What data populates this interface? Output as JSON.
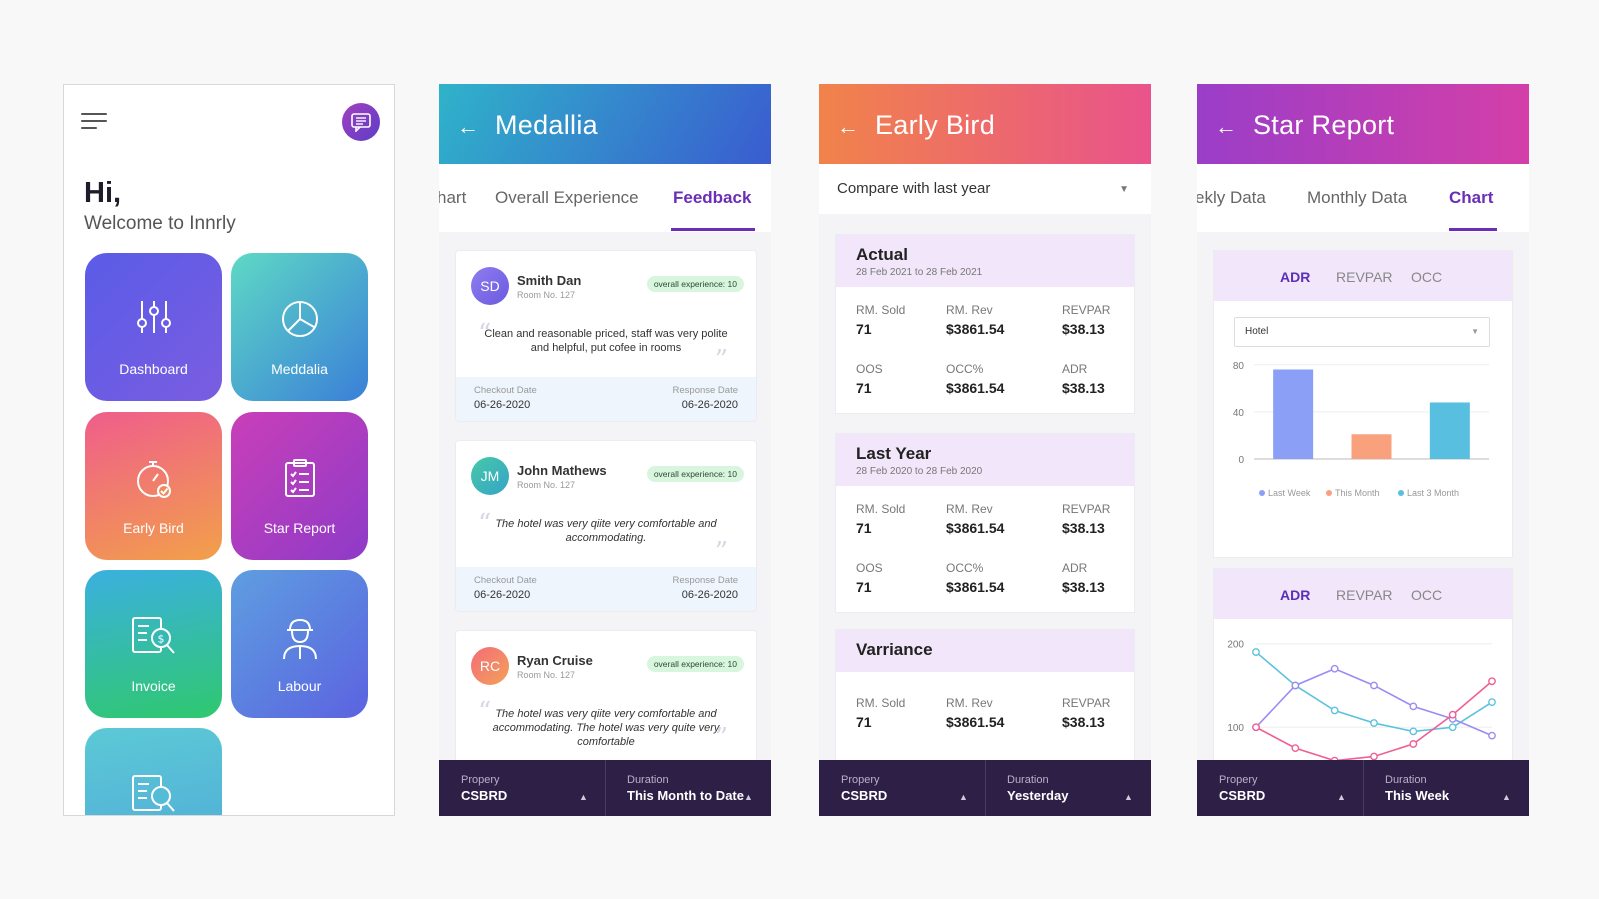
{
  "home": {
    "greeting": "Hi,",
    "welcome": "Welcome to Innrly",
    "tiles": [
      {
        "label": "Dashboard",
        "icon": "sliders-icon"
      },
      {
        "label": "Meddalia",
        "icon": "pie-chart-icon"
      },
      {
        "label": "Early Bird",
        "icon": "stopwatch-icon"
      },
      {
        "label": "Star Report",
        "icon": "clipboard-checklist-icon"
      },
      {
        "label": "Invoice",
        "icon": "invoice-search-icon"
      },
      {
        "label": "Labour",
        "icon": "worker-icon"
      },
      {
        "label": "",
        "icon": "invoice-search-icon"
      }
    ]
  },
  "medallia": {
    "title": "Medallia",
    "tabs": [
      "hart",
      "Overall Experience",
      "Feedback"
    ],
    "active_tab": "Feedback",
    "cards": [
      {
        "initials": "SD",
        "name": "Smith Dan",
        "room": "Room No. 127",
        "badge": "overall experience: 10",
        "quote": "Clean and reasonable priced, staff was very polite and helpful, put cofee in rooms",
        "checkout_label": "Checkout Date",
        "checkout": "06-26-2020",
        "response_label": "Response Date",
        "response": "06-26-2020"
      },
      {
        "initials": "JM",
        "name": "John Mathews",
        "room": "Room No. 127",
        "badge": "overall experience: 10",
        "quote": "The hotel was very qiite very comfortable and accommodating.",
        "checkout_label": "Checkout Date",
        "checkout": "06-26-2020",
        "response_label": "Response Date",
        "response": "06-26-2020"
      },
      {
        "initials": "RC",
        "name": "Ryan Cruise",
        "room": "Room No. 127",
        "badge": "overall experience: 10",
        "quote": "The hotel was very qiite very comfortable and accommodating. The hotel was very quite very comfortable"
      }
    ],
    "bottom": {
      "property_label": "Propery",
      "property": "CSBRD",
      "duration_label": "Duration",
      "duration": "This Month to Date"
    }
  },
  "early_bird": {
    "title": "Early Bird",
    "compare": "Compare with last year",
    "sections": [
      {
        "title": "Actual",
        "sub": "28 Feb 2021 to 28 Feb 2021",
        "metrics": [
          [
            "RM. Sold",
            "71"
          ],
          [
            "RM. Rev",
            "$3861.54"
          ],
          [
            "REVPAR",
            "$38.13"
          ],
          [
            "OOS",
            "71"
          ],
          [
            "OCC%",
            "$3861.54"
          ],
          [
            "ADR",
            "$38.13"
          ]
        ]
      },
      {
        "title": "Last Year",
        "sub": "28 Feb 2020 to 28 Feb 2020",
        "metrics": [
          [
            "RM. Sold",
            "71"
          ],
          [
            "RM. Rev",
            "$3861.54"
          ],
          [
            "REVPAR",
            "$38.13"
          ],
          [
            "OOS",
            "71"
          ],
          [
            "OCC%",
            "$3861.54"
          ],
          [
            "ADR",
            "$38.13"
          ]
        ]
      },
      {
        "title": "Varriance",
        "sub": "",
        "metrics": [
          [
            "RM. Sold",
            "71"
          ],
          [
            "RM. Rev",
            "$3861.54"
          ],
          [
            "REVPAR",
            "$38.13"
          ]
        ]
      }
    ],
    "bottom": {
      "property_label": "Propery",
      "property": "CSBRD",
      "duration_label": "Duration",
      "duration": "Yesterday"
    }
  },
  "star_report": {
    "title": "Star Report",
    "tabs": [
      "ekly Data",
      "Monthly Data",
      "Chart"
    ],
    "active_tab": "Chart",
    "chart_tabs": [
      "ADR",
      "REVPAR",
      "OCC"
    ],
    "select_value": "Hotel",
    "bottom": {
      "property_label": "Propery",
      "property": "CSBRD",
      "duration_label": "Duration",
      "duration": "This Week"
    }
  },
  "chart_data": [
    {
      "type": "bar",
      "categories": [
        "Last Week",
        "This Month",
        "Last 3 Month"
      ],
      "values": [
        76,
        21,
        48
      ],
      "ylim": [
        0,
        90
      ],
      "yticks": [
        0,
        40,
        80
      ],
      "legend": [
        "Last Week",
        "This Month",
        "Last 3 Month"
      ],
      "legend_placement": "bottom",
      "colors": [
        "#8b9ff7",
        "#f9a07d",
        "#58bfe0"
      ],
      "grid": true
    },
    {
      "type": "line",
      "x": [
        0,
        1,
        2,
        3,
        4,
        5,
        6
      ],
      "ylim": [
        50,
        220
      ],
      "yticks": [
        100,
        200
      ],
      "series": [
        {
          "values": [
            190,
            150,
            120,
            105,
            95,
            100,
            130
          ],
          "color": "#5ec2de"
        },
        {
          "values": [
            100,
            150,
            170,
            150,
            125,
            110,
            90
          ],
          "color": "#9b8cf2"
        },
        {
          "values": [
            100,
            75,
            60,
            65,
            80,
            115,
            155
          ],
          "color": "#ef5f95"
        }
      ],
      "grid": true
    }
  ]
}
